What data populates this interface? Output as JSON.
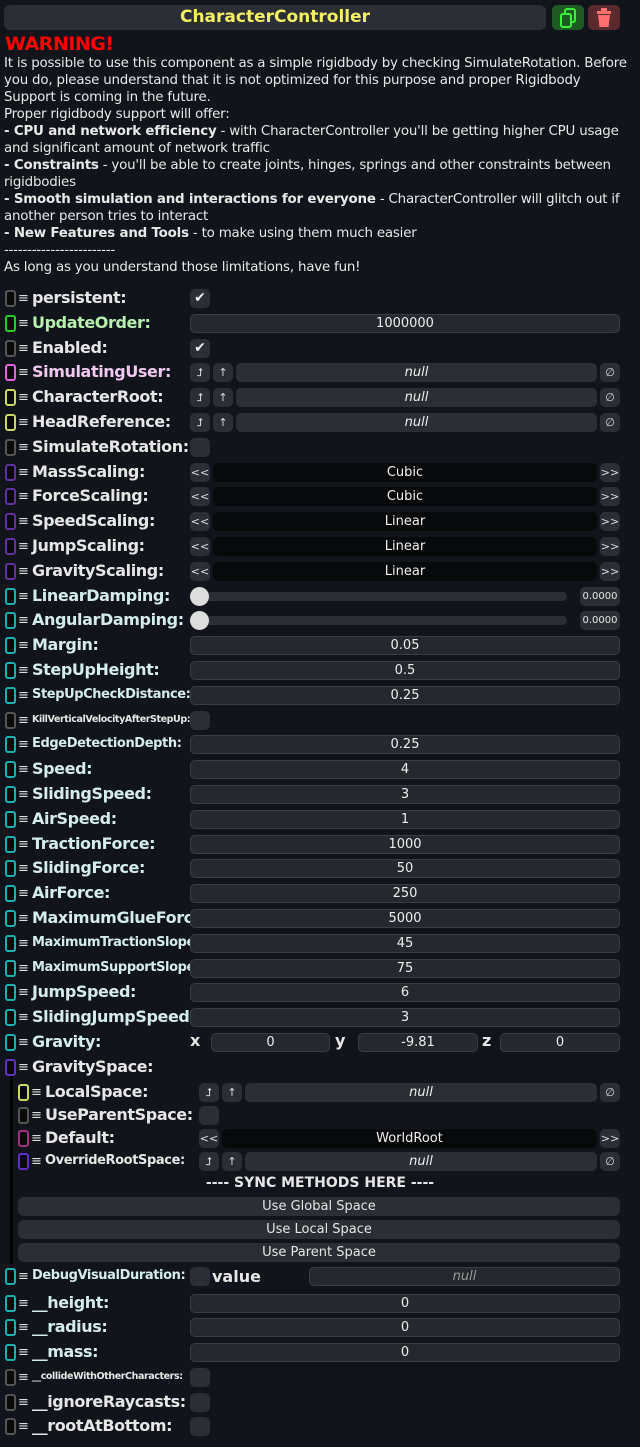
{
  "header": {
    "title": "CharacterController",
    "duplicate_icon": "copy-icon",
    "delete_icon": "trash-icon",
    "title_color": "#f4f064"
  },
  "warning": {
    "title": "WARNING!",
    "title_color": "#ff0000",
    "intro": "It is possible to use this component as a simple rigidbody by checking SimulateRotation. Before you do, please understand that it is not optimized for this purpose and proper Rigidbody Support is coming in the future.",
    "offer": "Proper rigidbody support will offer:",
    "points": [
      {
        "b": "- CPU and network efficiency",
        "t": " - with CharacterController you'll be getting higher CPU usage and significant amount of network traffic"
      },
      {
        "b": "- Constraints",
        "t": " - you'll be able to create joints, hinges, springs and other constraints between rigidbodies"
      },
      {
        "b": "- Smooth simulation and interactions for everyone",
        "t": " - CharacterController will glitch out if another person tries to interact"
      },
      {
        "b": "- New Features and Tools",
        "t": " - to make using them much easier"
      }
    ],
    "divider": "------------------------",
    "outro": "As long as you understand those limitations, have fun!"
  },
  "fields": [
    {
      "label": "persistent:",
      "type": "bool",
      "value": true,
      "color": "#555555"
    },
    {
      "label": "UpdateOrder:",
      "type": "num",
      "value": "1000000",
      "color": "#22cc22",
      "label_color": "#b8f0b0"
    },
    {
      "label": "Enabled:",
      "type": "bool",
      "value": true,
      "color": "#555555"
    },
    {
      "label": "SimulatingUser:",
      "type": "ref",
      "value": "null",
      "color": "#e060e0",
      "label_color": "#f0c8f0"
    },
    {
      "label": "CharacterRoot:",
      "type": "ref",
      "value": "null",
      "color": "#c8d860"
    },
    {
      "label": "HeadReference:",
      "type": "ref",
      "value": "null",
      "color": "#c8d860"
    },
    {
      "label": "SimulateRotation:",
      "type": "bool",
      "value": false,
      "color": "#555555"
    },
    {
      "label": "MassScaling:",
      "type": "enum",
      "value": "Cubic",
      "color": "#6030a0"
    },
    {
      "label": "ForceScaling:",
      "type": "enum",
      "value": "Cubic",
      "color": "#6030a0"
    },
    {
      "label": "SpeedScaling:",
      "type": "enum",
      "value": "Linear",
      "color": "#6030a0"
    },
    {
      "label": "JumpScaling:",
      "type": "enum",
      "value": "Linear",
      "color": "#6030a0"
    },
    {
      "label": "GravityScaling:",
      "type": "enum",
      "value": "Linear",
      "color": "#6030a0"
    },
    {
      "label": "LinearDamping:",
      "type": "slider",
      "value": "0.0000",
      "color": "#18b0b0"
    },
    {
      "label": "AngularDamping:",
      "type": "slider",
      "value": "0.0000",
      "color": "#18b0b0"
    },
    {
      "label": "Margin:",
      "type": "num",
      "value": "0.05",
      "color": "#18b0b0"
    },
    {
      "label": "StepUpHeight:",
      "type": "num",
      "value": "0.5",
      "color": "#18b0b0"
    },
    {
      "label": "StepUpCheckDistance:",
      "type": "num",
      "value": "0.25",
      "color": "#18b0b0"
    },
    {
      "label": "KillVerticalVelocityAfterStepUp:",
      "type": "bool",
      "value": false,
      "color": "#555555"
    },
    {
      "label": "EdgeDetectionDepth:",
      "type": "num",
      "value": "0.25",
      "color": "#18b0b0"
    },
    {
      "label": "Speed:",
      "type": "num",
      "value": "4",
      "color": "#18b0b0"
    },
    {
      "label": "SlidingSpeed:",
      "type": "num",
      "value": "3",
      "color": "#18b0b0"
    },
    {
      "label": "AirSpeed:",
      "type": "num",
      "value": "1",
      "color": "#18b0b0"
    },
    {
      "label": "TractionForce:",
      "type": "num",
      "value": "1000",
      "color": "#18b0b0"
    },
    {
      "label": "SlidingForce:",
      "type": "num",
      "value": "50",
      "color": "#18b0b0"
    },
    {
      "label": "AirForce:",
      "type": "num",
      "value": "250",
      "color": "#18b0b0"
    },
    {
      "label": "MaximumGlueForce:",
      "type": "num",
      "value": "5000",
      "color": "#18b0b0"
    },
    {
      "label": "MaximumTractionSlope:",
      "type": "num",
      "value": "45",
      "color": "#18b0b0"
    },
    {
      "label": "MaximumSupportSlope:",
      "type": "num",
      "value": "75",
      "color": "#18b0b0"
    },
    {
      "label": "JumpSpeed:",
      "type": "num",
      "value": "6",
      "color": "#18b0b0"
    },
    {
      "label": "SlidingJumpSpeed:",
      "type": "num",
      "value": "3",
      "color": "#18b0b0"
    },
    {
      "label": "Gravity:",
      "type": "vec",
      "x": "0",
      "y": "-9.81",
      "z": "0",
      "axes": [
        "x",
        "y",
        "z"
      ],
      "color": "#18b0b0"
    },
    {
      "label": "GravitySpace:",
      "type": "header",
      "color": "#6030c0"
    },
    {
      "label": "LocalSpace:",
      "type": "ref",
      "value": "null",
      "color": "#c8d860",
      "nested": true
    },
    {
      "label": "UseParentSpace:",
      "type": "bool",
      "value": false,
      "color": "#555555",
      "nested": true
    },
    {
      "label": "Default:",
      "type": "enum",
      "value": "WorldRoot",
      "color": "#a03080",
      "nested": true
    },
    {
      "label": "OverrideRootSpace:",
      "type": "ref",
      "value": "null",
      "color": "#6030c0",
      "nested": true
    },
    {
      "label": "---- SYNC METHODS HERE ----",
      "type": "sync"
    },
    {
      "label": "Use Global Space",
      "type": "button"
    },
    {
      "label": "Use Local Space",
      "type": "button"
    },
    {
      "label": "Use Parent Space",
      "type": "button"
    },
    {
      "label": "DebugVisualDuration:",
      "type": "nullable",
      "value_label": "value",
      "value": "null",
      "color": "#18b0b0"
    },
    {
      "label": "__height:",
      "type": "num",
      "value": "0",
      "color": "#18b0b0"
    },
    {
      "label": "__radius:",
      "type": "num",
      "value": "0",
      "color": "#18b0b0"
    },
    {
      "label": "__mass:",
      "type": "num",
      "value": "0",
      "color": "#18b0b0"
    },
    {
      "label": "__collideWithOtherCharacters:",
      "type": "bool",
      "value": false,
      "color": "#555555"
    },
    {
      "label": "__ignoreRaycasts:",
      "type": "bool",
      "value": false,
      "color": "#555555"
    },
    {
      "label": "__rootAtBottom:",
      "type": "bool",
      "value": false,
      "color": "#555555"
    }
  ],
  "icons": {
    "check": "✔",
    "prev": "<<",
    "next": ">>",
    "clear": "∅",
    "jump": "⮥",
    "up": "↑",
    "drag": "≡"
  }
}
